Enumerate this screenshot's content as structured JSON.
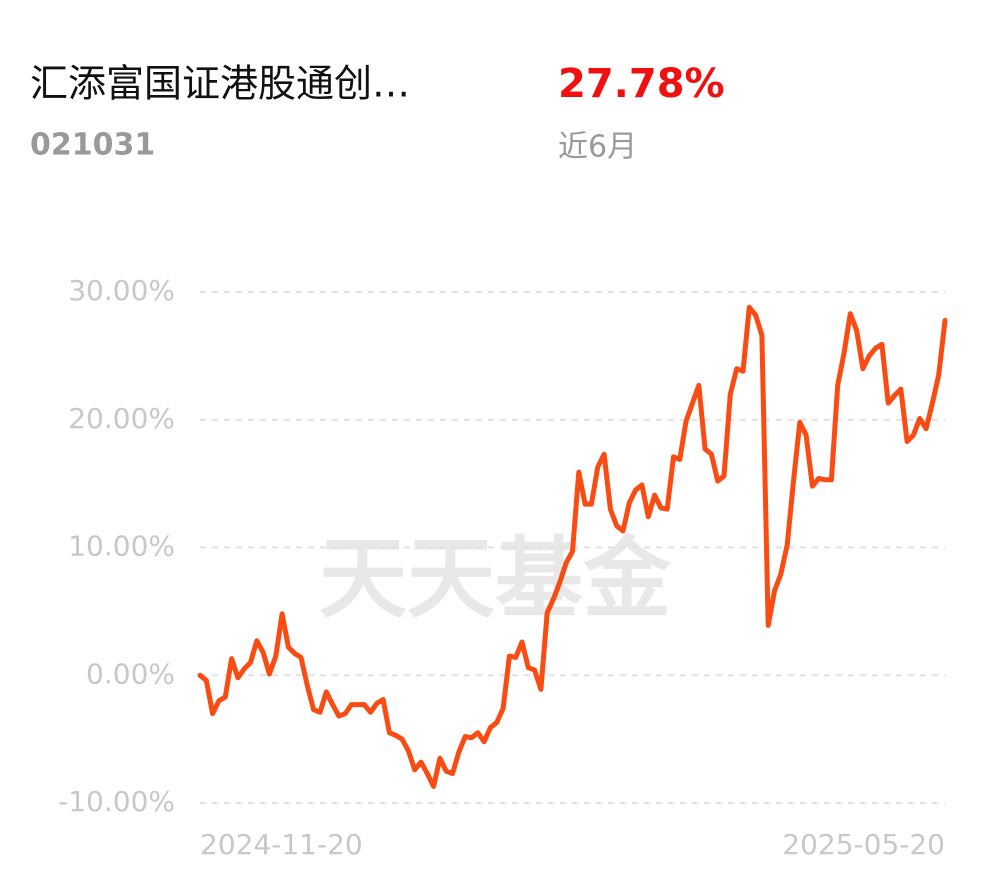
{
  "header": {
    "title": "汇添富国证港股通创…",
    "code": "021031",
    "return": "27.78%",
    "period": "近6月"
  },
  "watermark": "天天基金",
  "chart_data": {
    "type": "line",
    "categories": [
      "2024-11-20",
      null,
      null,
      null,
      null,
      null,
      null,
      null,
      null,
      null,
      null,
      null,
      null,
      null,
      null,
      null,
      null,
      null,
      null,
      null,
      null,
      null,
      null,
      null,
      null,
      null,
      null,
      null,
      null,
      null,
      null,
      null,
      null,
      null,
      null,
      null,
      null,
      null,
      null,
      null,
      null,
      null,
      null,
      null,
      null,
      null,
      null,
      null,
      null,
      null,
      null,
      null,
      null,
      null,
      null,
      null,
      null,
      null,
      null,
      null,
      null,
      null,
      null,
      null,
      null,
      null,
      null,
      null,
      null,
      null,
      null,
      null,
      null,
      null,
      null,
      null,
      null,
      null,
      null,
      null,
      null,
      null,
      null,
      null,
      null,
      null,
      null,
      null,
      null,
      null,
      null,
      null,
      null,
      null,
      null,
      null,
      null,
      null,
      null,
      null,
      null,
      null,
      null,
      null,
      null,
      null,
      null,
      null,
      null,
      null,
      null,
      null,
      null,
      null,
      null,
      null,
      null,
      null,
      "2025-05-20"
    ],
    "series": [
      {
        "color": "#fa4b12",
        "values": [
          0,
          -0.4,
          -3.0,
          -2.0,
          -1.7,
          1.3,
          -0.2,
          0.5,
          1.0,
          2.7,
          1.8,
          0.1,
          1.5,
          4.8,
          2.2,
          1.7,
          1.4,
          -0.8,
          -2.7,
          -2.9,
          -1.3,
          -2.3,
          -3.2,
          -3.0,
          -2.3,
          -2.3,
          -2.3,
          -2.9,
          -2.2,
          -1.9,
          -4.5,
          -4.7,
          -5.0,
          -5.9,
          -7.4,
          -6.8,
          -7.7,
          -8.7,
          -6.5,
          -7.5,
          -7.7,
          -6.0,
          -4.8,
          -4.9,
          -4.5,
          -5.2,
          -4.1,
          -3.7,
          -2.6,
          1.5,
          1.4,
          2.6,
          0.6,
          0.4,
          -1.1,
          4.9,
          6.0,
          7.3,
          8.8,
          9.7,
          15.9,
          13.4,
          13.4,
          16.3,
          17.3,
          13.0,
          11.7,
          11.3,
          13.5,
          14.5,
          14.9,
          12.4,
          14.1,
          13.1,
          13.0,
          17.1,
          16.9,
          19.9,
          21.3,
          22.7,
          17.7,
          17.3,
          15.2,
          15.6,
          22.0,
          24.0,
          23.8,
          28.8,
          28.2,
          26.6,
          3.9,
          6.6,
          7.9,
          10.2,
          15.2,
          19.8,
          18.8,
          14.8,
          15.4,
          15.3,
          15.3,
          22.7,
          25.2,
          28.3,
          27.0,
          24.0,
          25.0,
          25.6,
          25.9,
          21.3,
          21.9,
          22.4,
          18.3,
          18.8,
          20.1,
          19.3,
          21.3,
          23.5,
          27.78
        ]
      }
    ],
    "ylim": [
      -10,
      30
    ],
    "yticks": [
      {
        "value": -10,
        "label": "-10.00%"
      },
      {
        "value": 0,
        "label": "0.00%"
      },
      {
        "value": 10,
        "label": "10.00%"
      },
      {
        "value": 20,
        "label": "20.00%"
      },
      {
        "value": 30,
        "label": "30.00%"
      }
    ],
    "grid": true
  }
}
